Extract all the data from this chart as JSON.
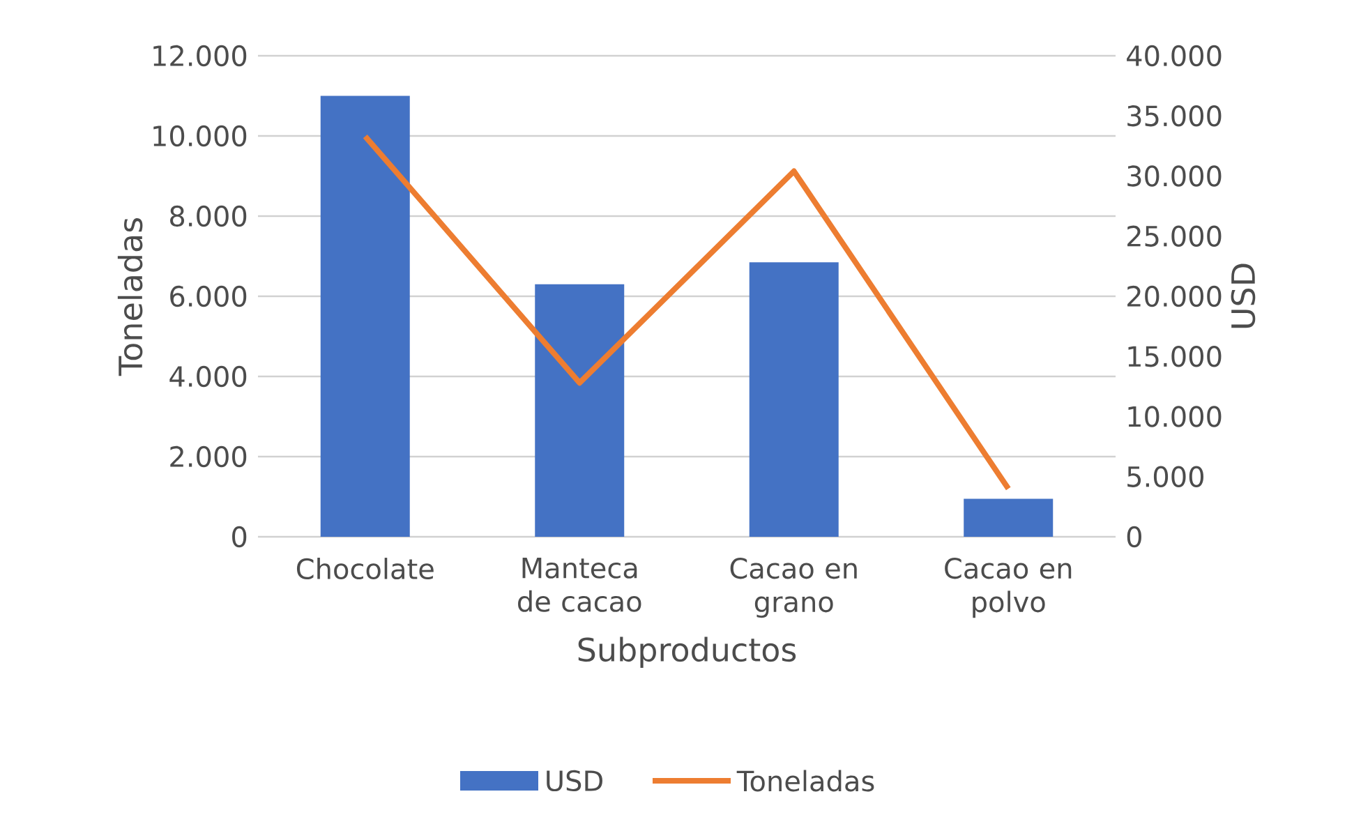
{
  "chart_data": {
    "type": "bar",
    "xlabel": "Subproductos",
    "ylabel": "Toneladas",
    "y2label": "USD",
    "categories": [
      "Chocolate",
      "Manteca de cacao",
      "Cacao en grano",
      "Cacao en polvo"
    ],
    "series": [
      {
        "name": "USD",
        "color": "#4472c4",
        "values": [
          11000,
          6300,
          6850,
          950
        ]
      },
      {
        "name": "Toneladas",
        "type": "line",
        "axis": "y2",
        "color": "#ed7d31",
        "values": [
          33300,
          12800,
          30400,
          4000
        ]
      }
    ],
    "ylim": [
      0,
      12000
    ],
    "yticks": [
      {
        "value": 0,
        "label": "0"
      },
      {
        "value": 2000,
        "label": "2.000"
      },
      {
        "value": 4000,
        "label": "4.000"
      },
      {
        "value": 6000,
        "label": "6.000"
      },
      {
        "value": 8000,
        "label": "8.000"
      },
      {
        "value": 10000,
        "label": "10.000"
      },
      {
        "value": 12000,
        "label": "12.000"
      }
    ],
    "y2lim": [
      0,
      40000
    ],
    "y2ticks": [
      {
        "value": 0,
        "label": "0"
      },
      {
        "value": 5000,
        "label": "5.000"
      },
      {
        "value": 10000,
        "label": "10.000"
      },
      {
        "value": 15000,
        "label": "15.000"
      },
      {
        "value": 20000,
        "label": "20.000"
      },
      {
        "value": 25000,
        "label": "25.000"
      },
      {
        "value": 30000,
        "label": "30.000"
      },
      {
        "value": 35000,
        "label": "35.000"
      },
      {
        "value": 40000,
        "label": "40.000"
      }
    ],
    "grid": "y",
    "legend": "bottom"
  }
}
